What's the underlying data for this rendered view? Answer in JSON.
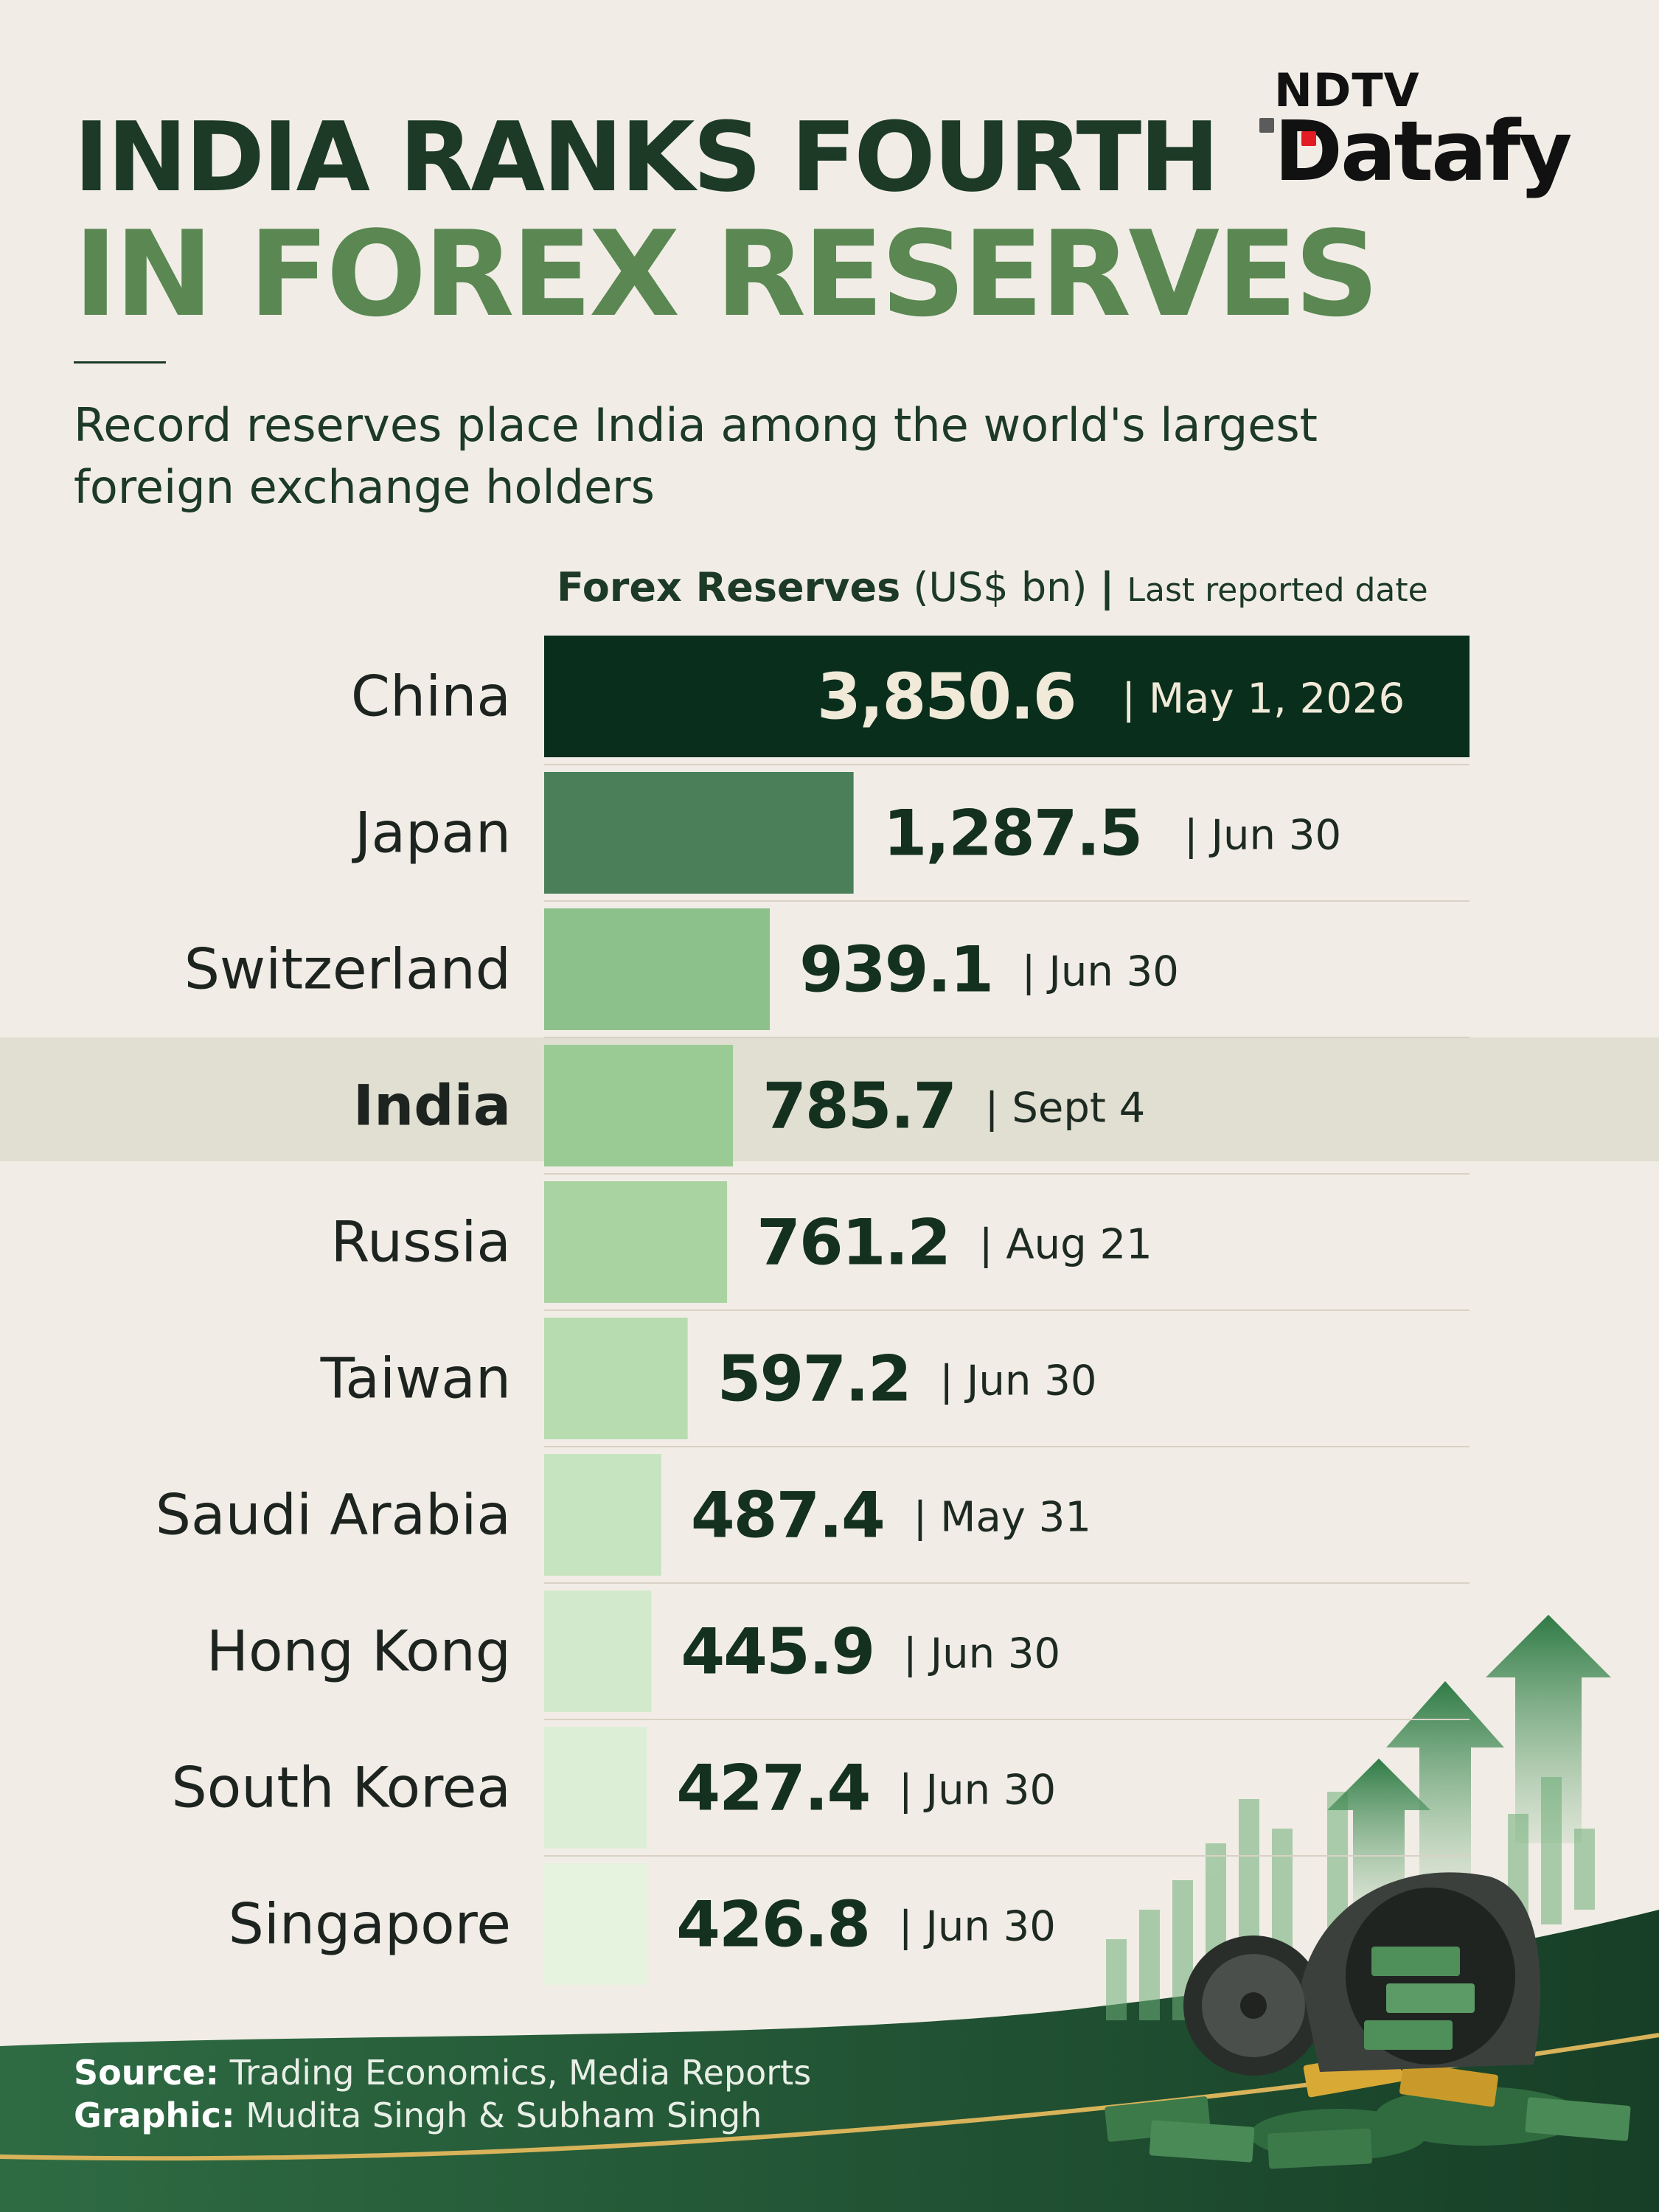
{
  "header": {
    "title_line1": "INDIA RANKS FOURTH",
    "title_line2": "IN FOREX RESERVES",
    "subtitle": "Record reserves place India among the world's largest foreign exchange holders"
  },
  "brand": {
    "top": "NDTV",
    "main": "Datafy",
    "accent_color": "#e31b23"
  },
  "legend": {
    "measure": "Forex Reserves",
    "unit": "(US$ bn)",
    "separator": "|",
    "date_label": "Last reported date"
  },
  "chart_data": {
    "type": "bar",
    "orientation": "horizontal",
    "categories": [
      "China",
      "Japan",
      "Switzerland",
      "India",
      "Russia",
      "Taiwan",
      "Saudi Arabia",
      "Hong Kong",
      "South Korea",
      "Singapore"
    ],
    "values": [
      3850.6,
      1287.5,
      939.1,
      785.7,
      761.2,
      597.2,
      487.4,
      445.9,
      427.4,
      426.8
    ],
    "value_labels": [
      "3,850.6",
      "1,287.5",
      "939.1",
      "785.7",
      "761.2",
      "597.2",
      "487.4",
      "445.9",
      "427.4",
      "426.8"
    ],
    "dates": [
      "May 1, 2026",
      "Jun 30",
      "Jun 30",
      "Sept 4",
      "Aug 21",
      "Jun 30",
      "May 31",
      "Jun 30",
      "Jun 30",
      "Jun 30"
    ],
    "highlight": "India",
    "xlim": [
      0,
      3850.6
    ],
    "colors": [
      "#0a2e1c",
      "#4a7f59",
      "#8cc18c",
      "#9bcb95",
      "#a9d4a2",
      "#b7dcb0",
      "#c6e4bf",
      "#d2e9cb",
      "#dcefd6",
      "#e5f3df"
    ]
  },
  "footer": {
    "source_label": "Source:",
    "source_text": "Trading Economics, Media Reports",
    "graphic_label": "Graphic:",
    "graphic_text": "Mudita Singh & Subham Singh"
  }
}
